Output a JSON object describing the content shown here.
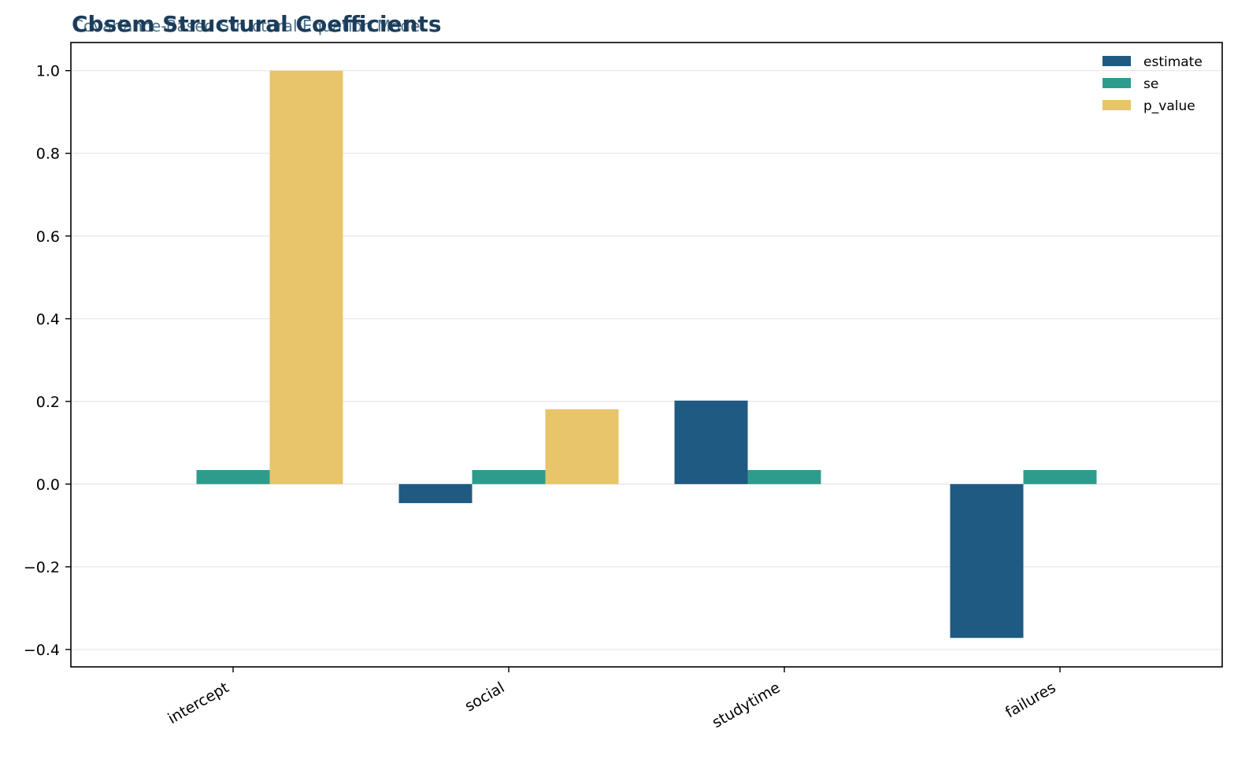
{
  "chart_data": {
    "type": "bar",
    "title": "Cbsem Structural Coefficients",
    "subtitle": "Covariance-Based Structural Equation Model",
    "categories": [
      "intercept",
      "social",
      "studytime",
      "failures"
    ],
    "series": [
      {
        "name": "estimate",
        "color": "#1f5a82",
        "values": [
          null,
          -0.046,
          0.202,
          -0.372
        ]
      },
      {
        "name": "se",
        "color": "#2e9c8c",
        "values": [
          0.034,
          0.034,
          0.034,
          0.034
        ]
      },
      {
        "name": "p_value",
        "color": "#e8c46a",
        "values": [
          1.0,
          0.181,
          null,
          null
        ]
      }
    ],
    "ylim": [
      -0.442,
      1.068
    ],
    "yticks": [
      -0.4,
      -0.2,
      0.0,
      0.2,
      0.4,
      0.6,
      0.8,
      1.0
    ],
    "ytick_labels": [
      "−0.4",
      "−0.2",
      "0.0",
      "0.2",
      "0.4",
      "0.6",
      "0.8",
      "1.0"
    ],
    "xlabel": "",
    "ylabel": "",
    "grid": "y",
    "legend_position": "top-right"
  }
}
